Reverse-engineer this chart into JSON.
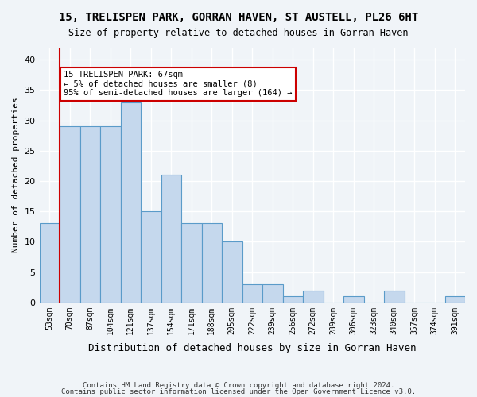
{
  "title": "15, TRELISPEN PARK, GORRAN HAVEN, ST AUSTELL, PL26 6HT",
  "subtitle": "Size of property relative to detached houses in Gorran Haven",
  "xlabel": "Distribution of detached houses by size in Gorran Haven",
  "ylabel": "Number of detached properties",
  "bar_color": "#c5d8ed",
  "bar_edge_color": "#5a9bc9",
  "categories": [
    "53sqm",
    "70sqm",
    "87sqm",
    "104sqm",
    "121sqm",
    "137sqm",
    "154sqm",
    "171sqm",
    "188sqm",
    "205sqm",
    "222sqm",
    "239sqm",
    "256sqm",
    "272sqm",
    "289sqm",
    "306sqm",
    "323sqm",
    "340sqm",
    "357sqm",
    "374sqm",
    "391sqm"
  ],
  "values": [
    13,
    29,
    29,
    29,
    33,
    15,
    21,
    13,
    13,
    10,
    3,
    3,
    1,
    2,
    0,
    1,
    0,
    2,
    0,
    0,
    1
  ],
  "ylim": [
    0,
    42
  ],
  "yticks": [
    0,
    5,
    10,
    15,
    20,
    25,
    30,
    35,
    40
  ],
  "property_line_x": 0,
  "annotation_text": "15 TRELISPEN PARK: 67sqm\n← 5% of detached houses are smaller (8)\n95% of semi-detached houses are larger (164) →",
  "annotation_box_color": "#ffffff",
  "annotation_box_edge": "#cc0000",
  "property_line_color": "#cc0000",
  "background_color": "#f0f4f8",
  "grid_color": "#ffffff",
  "footer_line1": "Contains HM Land Registry data © Crown copyright and database right 2024.",
  "footer_line2": "Contains public sector information licensed under the Open Government Licence v3.0."
}
